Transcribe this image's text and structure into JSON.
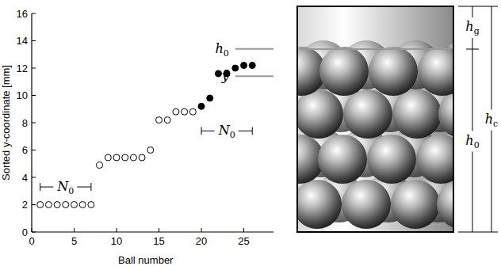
{
  "chart_data": {
    "type": "scatter",
    "xlabel": "Ball number",
    "ylabel": "Sorted y-coordinate [mm]",
    "xlim": [
      0,
      28.5
    ],
    "ylim": [
      0,
      16
    ],
    "xticks": [
      0,
      5,
      10,
      15,
      20,
      25
    ],
    "yticks": [
      0,
      2,
      4,
      6,
      8,
      10,
      12,
      14,
      16
    ],
    "series": [
      {
        "marker": "circle-open",
        "color": "#000000",
        "x": [
          1,
          2,
          3,
          4,
          5,
          6,
          7,
          8,
          9,
          10,
          11,
          12,
          13,
          14,
          15,
          16,
          17,
          18,
          19
        ],
        "values": [
          2.0,
          2.0,
          2.0,
          2.0,
          2.0,
          2.0,
          2.0,
          4.9,
          5.45,
          5.45,
          5.45,
          5.45,
          5.45,
          6.0,
          8.2,
          8.2,
          8.8,
          8.8,
          8.8
        ]
      },
      {
        "marker": "circle-filled",
        "color": "#000000",
        "x": [
          20,
          21,
          22,
          23,
          24,
          25,
          26
        ],
        "values": [
          9.2,
          9.8,
          11.6,
          11.6,
          12.0,
          12.2,
          12.2
        ]
      }
    ],
    "reference_lines": [
      {
        "label": {
          "text": "h",
          "sub": "0"
        },
        "y": 13.4,
        "x": [
          24,
          28.5
        ]
      },
      {
        "label": {
          "text": "ȳ"
        },
        "y": 11.4,
        "x": [
          24,
          28.5
        ]
      }
    ],
    "brackets": [
      {
        "label": {
          "text": "N",
          "sub": "0"
        },
        "y": 3.3,
        "x": [
          1,
          7
        ]
      },
      {
        "label": {
          "text": "N",
          "sub": "0"
        },
        "y": 7.4,
        "x": [
          20,
          26
        ]
      }
    ]
  },
  "diagram": {
    "fill_level": {
      "text": "h",
      "sub": "0"
    },
    "gap": {
      "text": "h",
      "sub": "g"
    },
    "container": {
      "text": "h",
      "sub": "c"
    }
  }
}
